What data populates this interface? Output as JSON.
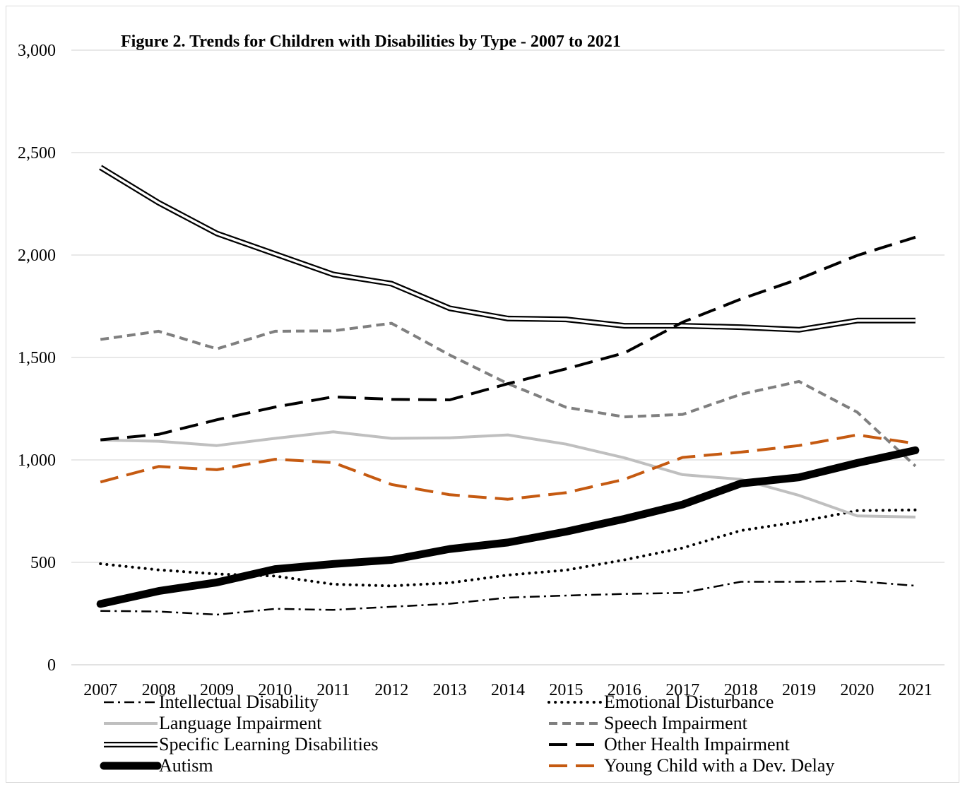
{
  "chart_data": {
    "type": "line",
    "title": "Figure 2. Trends for Children with Disabilities by Type - 2007 to 2021",
    "xlabel": "",
    "ylabel": "",
    "ylim": [
      0,
      3000
    ],
    "yticks": [
      0,
      500,
      1000,
      1500,
      2000,
      2500,
      3000
    ],
    "ytick_labels": [
      "0",
      "500",
      "1,000",
      "1,500",
      "2,000",
      "2,500",
      "3,000"
    ],
    "categories": [
      "2007",
      "2008",
      "2009",
      "2010",
      "2011",
      "2012",
      "2013",
      "2014",
      "2015",
      "2016",
      "2017",
      "2018",
      "2019",
      "2020",
      "2021"
    ],
    "grid": true,
    "legend_position": "bottom",
    "series": [
      {
        "name": "Intellectual Disability",
        "style": "dashdot",
        "color": "#000000",
        "values": [
          263,
          260,
          245,
          273,
          268,
          283,
          298,
          328,
          338,
          346,
          351,
          405,
          405,
          408,
          386
        ]
      },
      {
        "name": "Emotional Disturbance",
        "style": "dotted",
        "color": "#000000",
        "values": [
          493,
          463,
          443,
          433,
          393,
          385,
          400,
          438,
          462,
          512,
          570,
          655,
          698,
          752,
          756
        ]
      },
      {
        "name": "Language Impairment",
        "style": "solid-light",
        "color": "#bfbfbf",
        "values": [
          1097,
          1091,
          1070,
          1105,
          1137,
          1105,
          1108,
          1122,
          1077,
          1010,
          928,
          905,
          827,
          727,
          721
        ]
      },
      {
        "name": "Speech Impairment",
        "style": "dashed-gray",
        "color": "#7f7f7f",
        "values": [
          1588,
          1628,
          1542,
          1628,
          1630,
          1667,
          1512,
          1372,
          1257,
          1210,
          1222,
          1320,
          1383,
          1233,
          970
        ]
      },
      {
        "name": "Specific Learning Disabilities",
        "style": "double",
        "color": "#000000",
        "values": [
          2428,
          2255,
          2105,
          2005,
          1905,
          1860,
          1740,
          1690,
          1686,
          1655,
          1655,
          1648,
          1635,
          1680,
          1680
        ]
      },
      {
        "name": "Other Health Impairment",
        "style": "long-dash",
        "color": "#000000",
        "values": [
          1098,
          1125,
          1196,
          1258,
          1308,
          1296,
          1293,
          1372,
          1445,
          1522,
          1672,
          1785,
          1883,
          1998,
          2087
        ]
      },
      {
        "name": "Autism",
        "style": "thick",
        "color": "#000000",
        "values": [
          297,
          360,
          402,
          467,
          492,
          512,
          565,
          597,
          650,
          712,
          782,
          885,
          915,
          985,
          1047
        ]
      },
      {
        "name": "Young Child with a Dev. Delay",
        "style": "dash-orange",
        "color": "#c55a11",
        "values": [
          892,
          968,
          952,
          1003,
          987,
          880,
          830,
          808,
          840,
          905,
          1012,
          1038,
          1070,
          1122,
          1080
        ]
      }
    ]
  }
}
